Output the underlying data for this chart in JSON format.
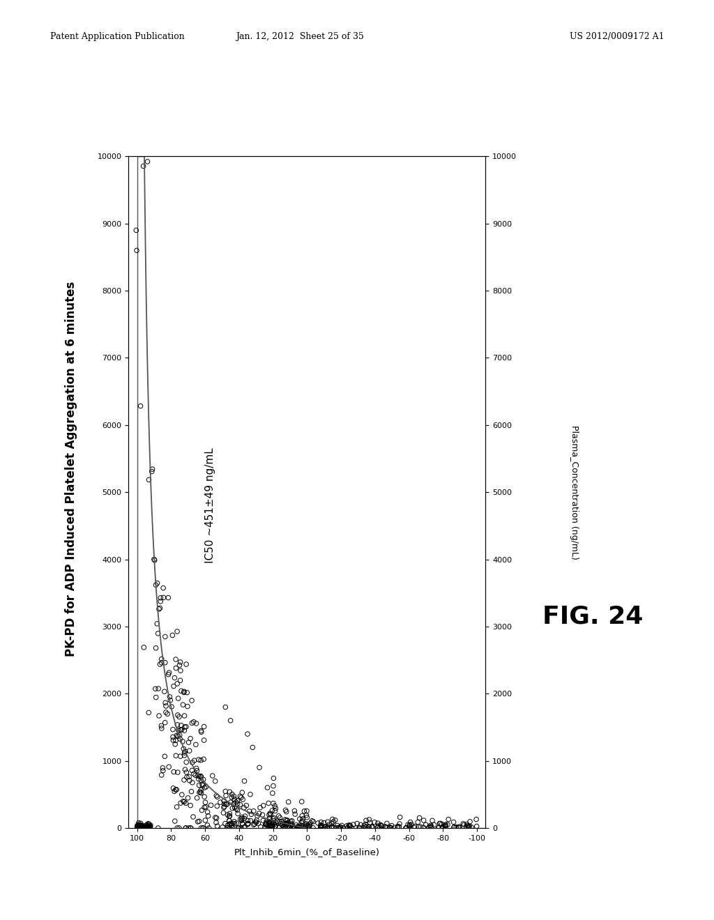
{
  "title": "PK-PD for ADP Induced Platelet Aggregation at 6 minutes",
  "xlabel": "Plt_Inhib_6min_(%_of_Baseline)",
  "ylabel_right": "Plasma_Concentration (ng/mL)",
  "fig_label": "FIG. 24",
  "annotation": "IC50 ~451±49 ng/mL",
  "header_left": "Patent Application Publication",
  "header_center": "Jan. 12, 2012  Sheet 25 of 35",
  "header_right": "US 2012/0009172 A1",
  "xlim": [
    105,
    -105
  ],
  "ylim": [
    0,
    10000
  ],
  "xticks": [
    100,
    80,
    60,
    40,
    20,
    0,
    -20,
    -40,
    -60,
    -80,
    -100
  ],
  "yticks": [
    0,
    1000,
    2000,
    3000,
    4000,
    5000,
    6000,
    7000,
    8000,
    9000,
    10000
  ],
  "vline_x": 100,
  "bg_color": "#ffffff",
  "scatter_edgecolor": "#000000",
  "scatter_size": 22,
  "curve_color": "#555555",
  "vline_color": "#555555"
}
